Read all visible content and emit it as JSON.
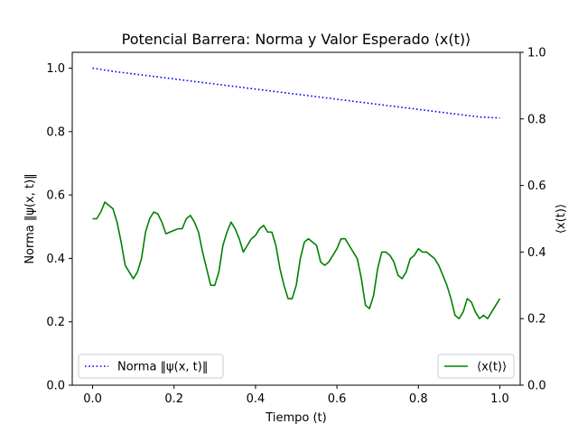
{
  "chart_data": {
    "type": "line",
    "title": "Potencial Barrera: Norma y Valor Esperado ⟨x(t)⟩",
    "xlabel": "Tiempo (t)",
    "ylabel_left": "Norma ‖ψ(x, t)‖",
    "ylabel_right": "⟨x(t)⟩",
    "xlim": [
      -0.05,
      1.05
    ],
    "ylim_left": [
      0,
      1.05
    ],
    "ylim_right": [
      0,
      1.0
    ],
    "xticks": [
      0.0,
      0.2,
      0.4,
      0.6,
      0.8,
      1.0
    ],
    "xtick_labels": [
      "0.0",
      "0.2",
      "0.4",
      "0.6",
      "0.8",
      "1.0"
    ],
    "yticks_left": [
      0.0,
      0.2,
      0.4,
      0.6,
      0.8,
      1.0
    ],
    "ytick_labels_left": [
      "0.0",
      "0.2",
      "0.4",
      "0.6",
      "0.8",
      "1.0"
    ],
    "yticks_right": [
      0.0,
      0.2,
      0.4,
      0.6,
      0.8,
      1.0
    ],
    "ytick_labels_right": [
      "0.0",
      "0.2",
      "0.4",
      "0.6",
      "0.8",
      "1.0"
    ],
    "grid": false,
    "series": [
      {
        "name": "Norma ‖ψ(x, t)‖",
        "axis": "left",
        "style": "dotted",
        "color": "#0000ff",
        "x": [
          0.0,
          0.05,
          0.1,
          0.15,
          0.2,
          0.25,
          0.3,
          0.35,
          0.4,
          0.45,
          0.5,
          0.55,
          0.6,
          0.65,
          0.7,
          0.75,
          0.8,
          0.85,
          0.9,
          0.95,
          1.0
        ],
        "y": [
          1.0,
          0.99,
          0.982,
          0.974,
          0.966,
          0.958,
          0.95,
          0.942,
          0.934,
          0.926,
          0.918,
          0.91,
          0.902,
          0.894,
          0.886,
          0.878,
          0.87,
          0.862,
          0.854,
          0.846,
          0.843
        ]
      },
      {
        "name": "⟨x(t)⟩",
        "axis": "right",
        "style": "solid",
        "color": "#008000",
        "x": [
          0.0,
          0.01,
          0.02,
          0.03,
          0.04,
          0.05,
          0.06,
          0.07,
          0.08,
          0.09,
          0.1,
          0.11,
          0.12,
          0.13,
          0.14,
          0.15,
          0.16,
          0.17,
          0.18,
          0.19,
          0.2,
          0.21,
          0.22,
          0.23,
          0.24,
          0.25,
          0.26,
          0.27,
          0.28,
          0.29,
          0.3,
          0.31,
          0.32,
          0.33,
          0.34,
          0.35,
          0.36,
          0.37,
          0.38,
          0.39,
          0.4,
          0.41,
          0.42,
          0.43,
          0.44,
          0.45,
          0.46,
          0.47,
          0.48,
          0.49,
          0.5,
          0.51,
          0.52,
          0.53,
          0.54,
          0.55,
          0.56,
          0.57,
          0.58,
          0.59,
          0.6,
          0.61,
          0.62,
          0.63,
          0.64,
          0.65,
          0.66,
          0.67,
          0.68,
          0.69,
          0.7,
          0.71,
          0.72,
          0.73,
          0.74,
          0.75,
          0.76,
          0.77,
          0.78,
          0.79,
          0.8,
          0.81,
          0.82,
          0.83,
          0.84,
          0.85,
          0.86,
          0.87,
          0.88,
          0.89,
          0.9,
          0.91,
          0.92,
          0.93,
          0.94,
          0.95,
          0.96,
          0.97,
          0.98,
          0.99,
          1.0
        ],
        "y": [
          0.5,
          0.5,
          0.52,
          0.55,
          0.54,
          0.53,
          0.49,
          0.43,
          0.36,
          0.34,
          0.32,
          0.34,
          0.38,
          0.46,
          0.5,
          0.52,
          0.515,
          0.49,
          0.455,
          0.46,
          0.465,
          0.47,
          0.47,
          0.5,
          0.51,
          0.49,
          0.46,
          0.4,
          0.35,
          0.3,
          0.3,
          0.34,
          0.42,
          0.46,
          0.49,
          0.47,
          0.44,
          0.4,
          0.42,
          0.44,
          0.45,
          0.47,
          0.48,
          0.46,
          0.46,
          0.42,
          0.35,
          0.3,
          0.26,
          0.26,
          0.3,
          0.38,
          0.43,
          0.44,
          0.43,
          0.42,
          0.37,
          0.36,
          0.37,
          0.39,
          0.41,
          0.44,
          0.44,
          0.42,
          0.4,
          0.38,
          0.32,
          0.24,
          0.23,
          0.27,
          0.35,
          0.4,
          0.4,
          0.39,
          0.37,
          0.33,
          0.32,
          0.34,
          0.38,
          0.39,
          0.41,
          0.4,
          0.4,
          0.39,
          0.38,
          0.36,
          0.33,
          0.3,
          0.26,
          0.21,
          0.2,
          0.22,
          0.26,
          0.25,
          0.22,
          0.2,
          0.21,
          0.2,
          0.22,
          0.24,
          0.26
        ]
      }
    ],
    "legends": [
      {
        "entry": "Norma ‖ψ(x, t)‖",
        "placement": "lower-left"
      },
      {
        "entry": "⟨x(t)⟩",
        "placement": "lower-right"
      }
    ]
  }
}
